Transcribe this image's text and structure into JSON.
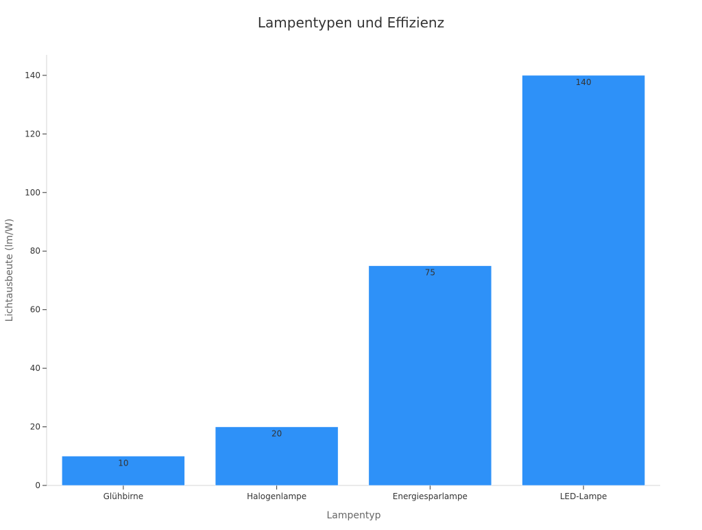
{
  "chart_data": {
    "type": "bar",
    "title": "Lampentypen und Effizienz",
    "xlabel": "Lampentyp",
    "ylabel": "Lichtausbeute (lm/W)",
    "categories": [
      "Glühbirne",
      "Halogenlampe",
      "Energiesparlampe",
      "LED-Lampe"
    ],
    "values": [
      10,
      20,
      75,
      140
    ],
    "data_labels": [
      "10",
      "20",
      "75",
      "140"
    ],
    "ylim": [
      0,
      147
    ],
    "y_ticks": [
      0,
      20,
      40,
      60,
      80,
      100,
      120,
      140
    ],
    "y_tick_labels": [
      "0",
      "20",
      "40",
      "60",
      "80",
      "100",
      "120",
      "140"
    ],
    "bar_color": "#2e91f8",
    "grid": false,
    "legend": "none"
  }
}
